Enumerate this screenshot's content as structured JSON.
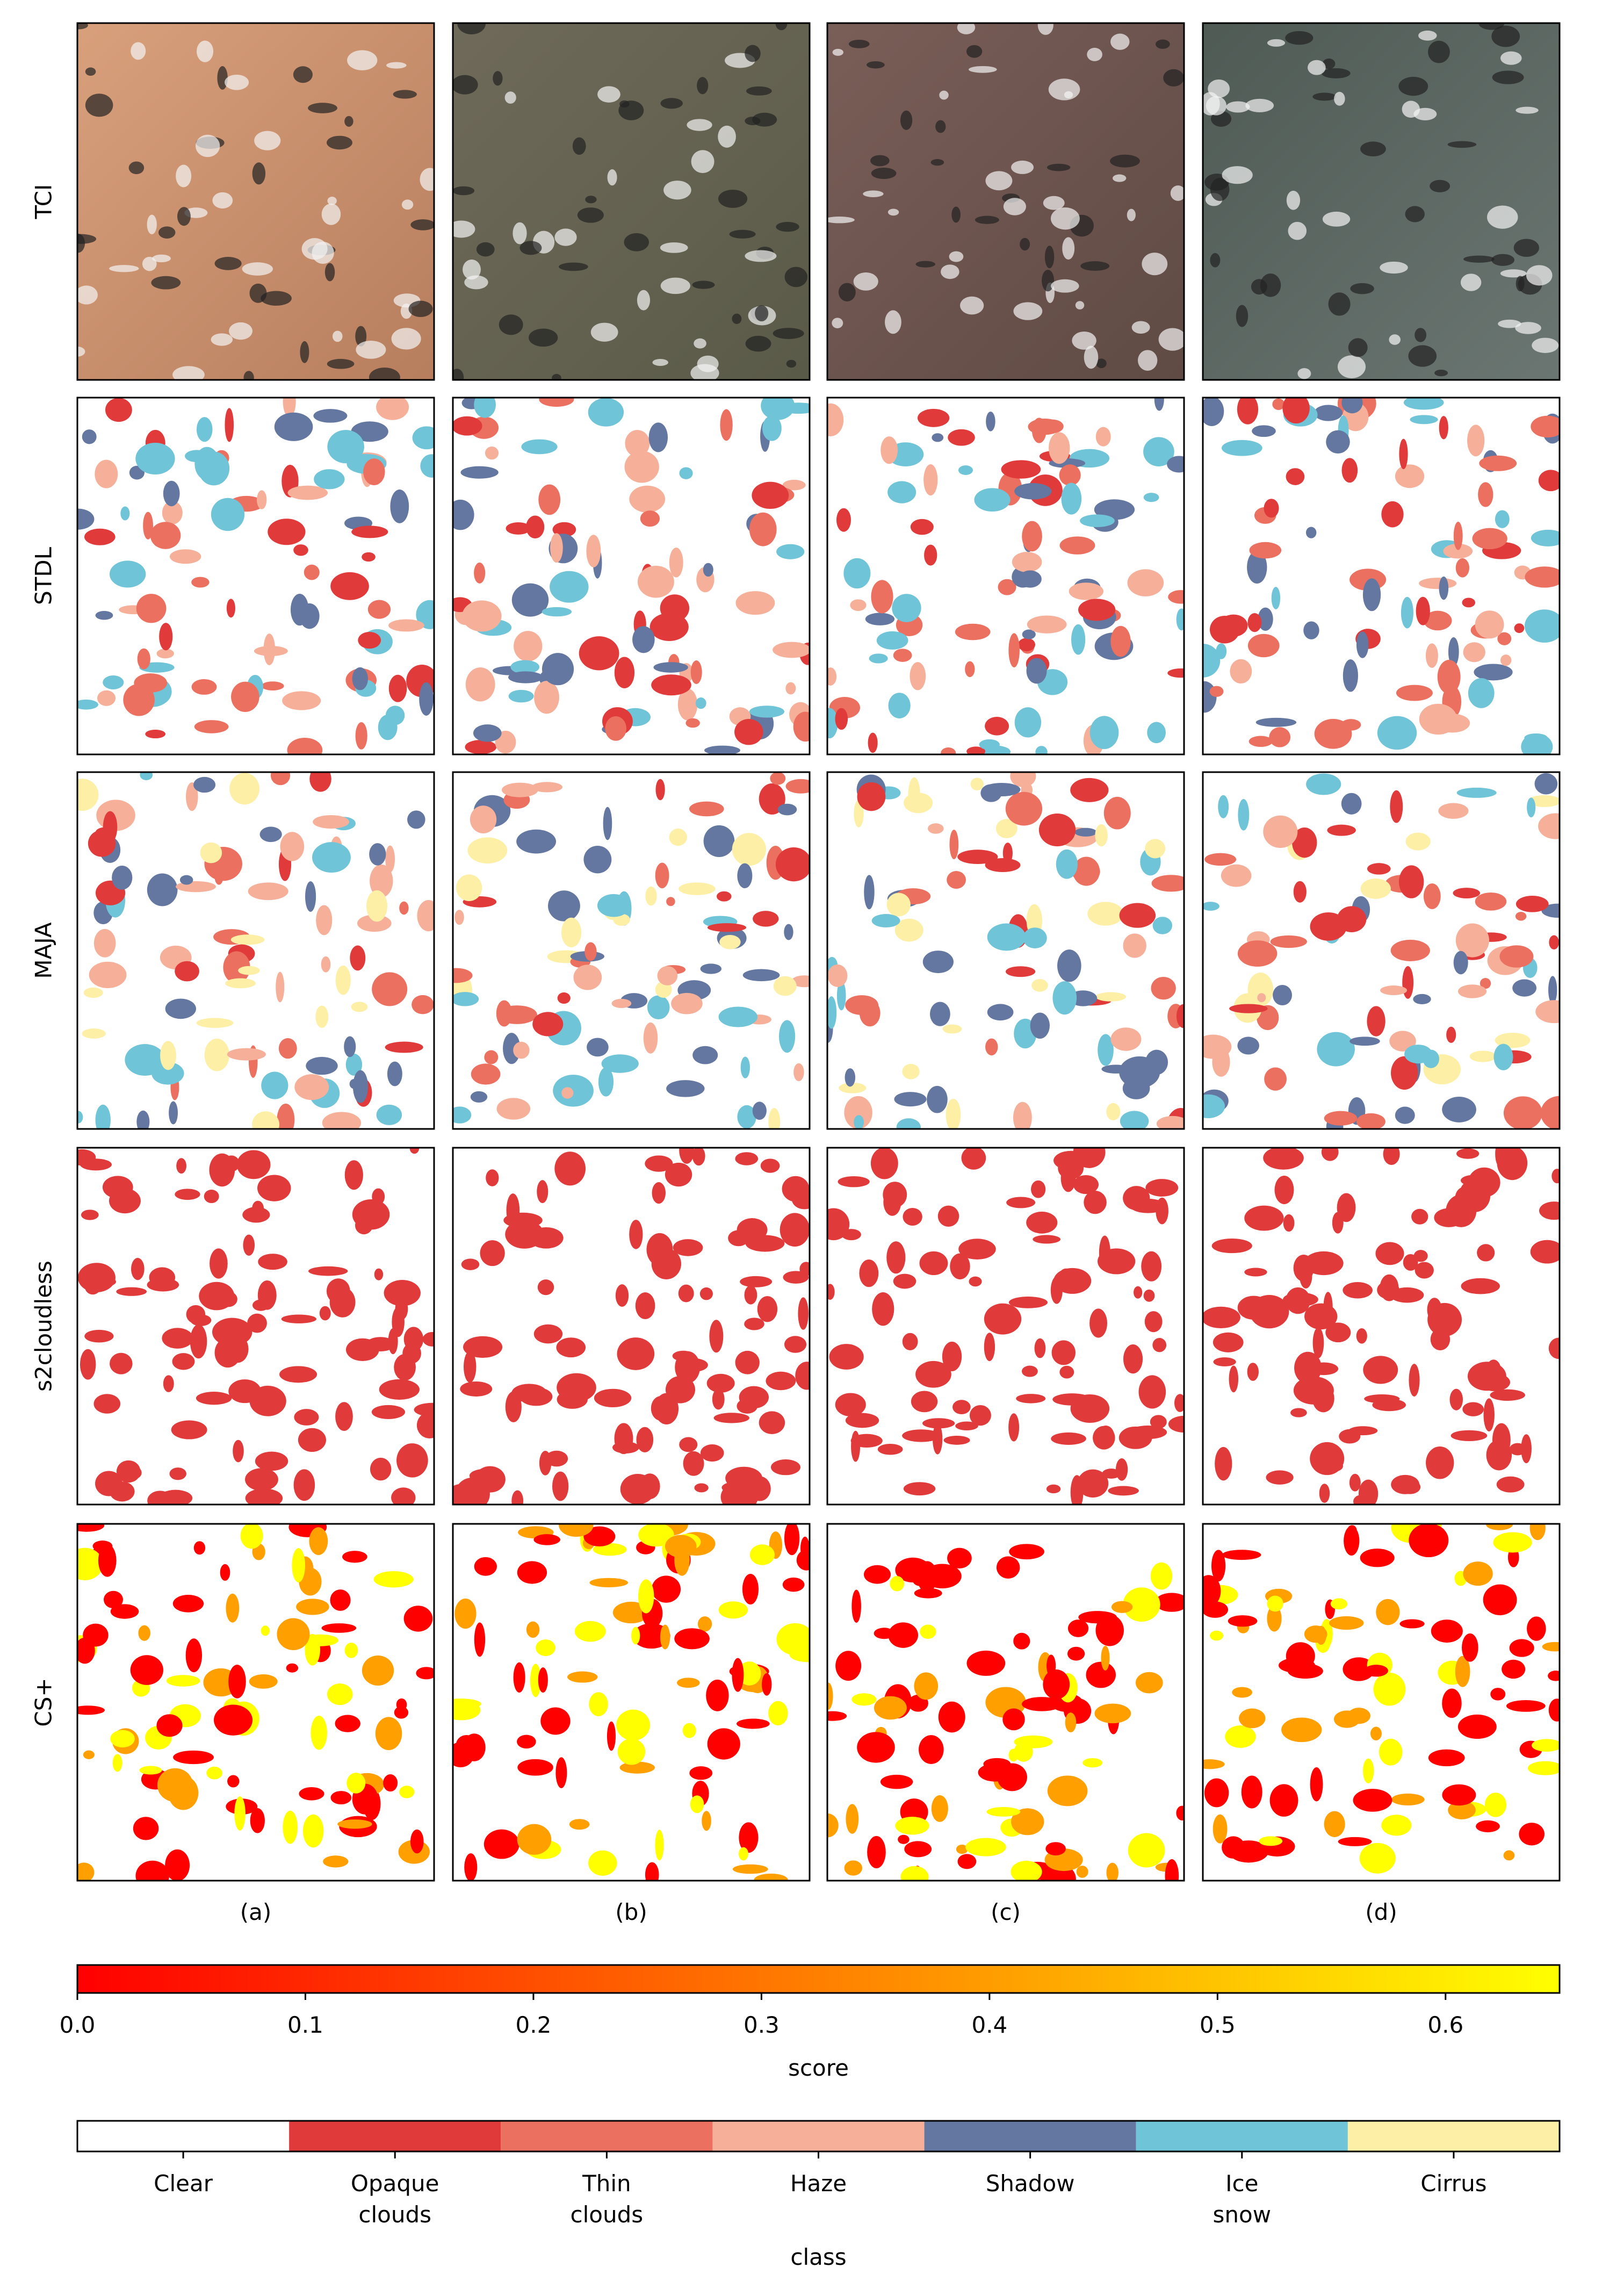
{
  "row_labels": [
    "TCI",
    "STDL",
    "MAJA",
    "s2cloudless",
    "CS+"
  ],
  "column_labels": [
    "(a)",
    "(b)",
    "(c)",
    "(d)"
  ],
  "score_colorbar": {
    "label": "score",
    "xlim": [
      0,
      0.65
    ],
    "colormap": [
      "#ff0000",
      "#ffff00"
    ],
    "xticks": [
      {
        "value": 0,
        "label": "0.0"
      },
      {
        "value": 0.1,
        "label": "0.1"
      },
      {
        "value": 0.2,
        "label": "0.2"
      },
      {
        "value": 0.3,
        "label": "0.3"
      },
      {
        "value": 0.4,
        "label": "0.4"
      },
      {
        "value": 0.5,
        "label": "0.5"
      },
      {
        "value": 0.6,
        "label": "0.6"
      }
    ]
  },
  "class_legend": {
    "label": "class",
    "categories": [
      "Clear",
      "Opaque\nclouds",
      "Thin\nclouds",
      "Haze",
      "Shadow",
      "Ice\nsnow",
      "Cirrus"
    ],
    "colors": [
      "#ffffff",
      "#e03a3a",
      "#eb7060",
      "#f6b09a",
      "#6477a0",
      "#70c4d8",
      "#fdf0a6"
    ]
  }
}
